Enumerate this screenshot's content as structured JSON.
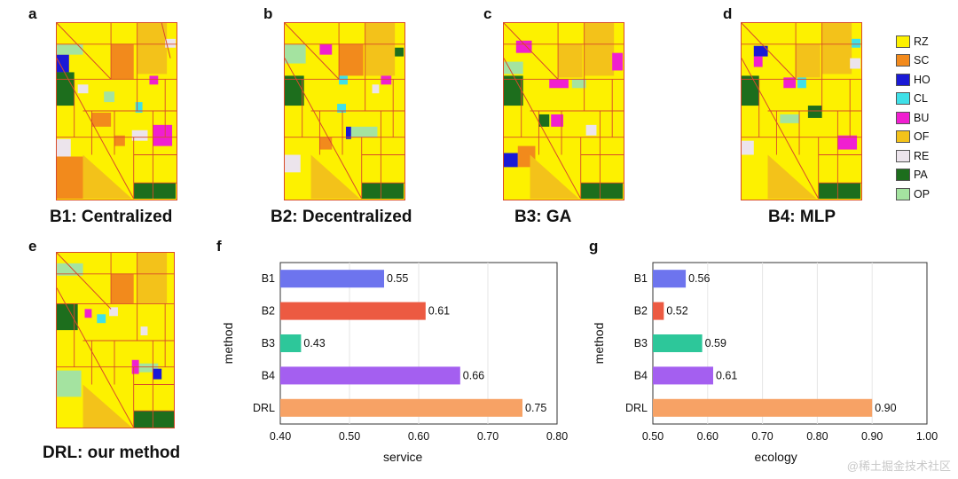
{
  "panels": {
    "a": {
      "letter": "a",
      "caption": "B1: Centralized"
    },
    "b": {
      "letter": "b",
      "caption": "B2: Decentralized"
    },
    "c": {
      "letter": "c",
      "caption": "B3: GA"
    },
    "d": {
      "letter": "d",
      "caption": "B4: MLP"
    },
    "e": {
      "letter": "e",
      "caption": "DRL: our method"
    },
    "f": {
      "letter": "f"
    },
    "g": {
      "letter": "g"
    }
  },
  "legend": [
    {
      "code": "RZ",
      "color": "#fdf100"
    },
    {
      "code": "SC",
      "color": "#f28a1c"
    },
    {
      "code": "HO",
      "color": "#1a1ad6"
    },
    {
      "code": "CL",
      "color": "#3fe0e8"
    },
    {
      "code": "BU",
      "color": "#f01fd0"
    },
    {
      "code": "OF",
      "color": "#f3c21a"
    },
    {
      "code": "RE",
      "color": "#ece4ec"
    },
    {
      "code": "PA",
      "color": "#1d6e1d"
    },
    {
      "code": "OP",
      "color": "#a4e3a0"
    }
  ],
  "chart_data": [
    {
      "type": "bar",
      "orientation": "horizontal",
      "categories": [
        "B1",
        "B2",
        "B3",
        "B4",
        "DRL"
      ],
      "values": [
        0.55,
        0.61,
        0.43,
        0.66,
        0.75
      ],
      "value_labels": [
        "0.55",
        "0.61",
        "0.43",
        "0.66",
        "0.75"
      ],
      "colors": [
        "#6d74ee",
        "#ec5a42",
        "#2dc79a",
        "#a45ff0",
        "#f7a265"
      ],
      "xlabel": "service",
      "ylabel": "method",
      "xlim": [
        0.4,
        0.8
      ],
      "xticks": [
        "0.40",
        "0.50",
        "0.60",
        "0.70",
        "0.80"
      ],
      "grid": "vertical"
    },
    {
      "type": "bar",
      "orientation": "horizontal",
      "categories": [
        "B1",
        "B2",
        "B3",
        "B4",
        "DRL"
      ],
      "values": [
        0.56,
        0.52,
        0.59,
        0.61,
        0.9
      ],
      "value_labels": [
        "0.56",
        "0.52",
        "0.59",
        "0.61",
        "0.90"
      ],
      "colors": [
        "#6d74ee",
        "#ec5a42",
        "#2dc79a",
        "#a45ff0",
        "#f7a265"
      ],
      "xlabel": "ecology",
      "ylabel": "method",
      "xlim": [
        0.5,
        1.0
      ],
      "xticks": [
        "0.50",
        "0.60",
        "0.70",
        "0.80",
        "0.90",
        "1.00"
      ],
      "grid": "vertical"
    }
  ],
  "watermark": "@稀土掘金技术社区"
}
